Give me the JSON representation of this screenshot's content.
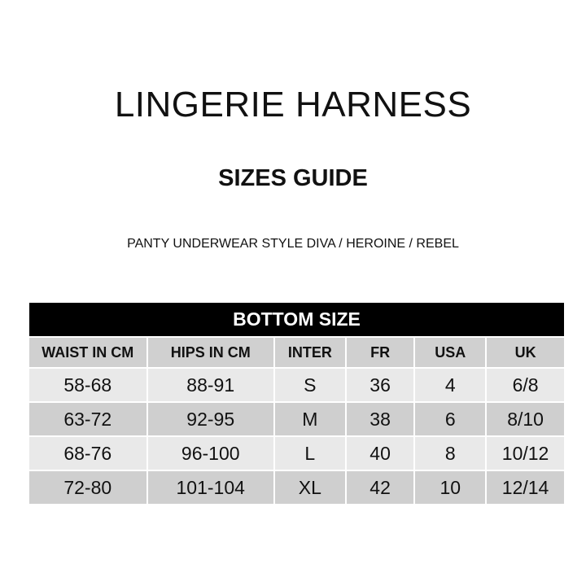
{
  "title": "LINGERIE HARNESS",
  "subtitle": "SIZES GUIDE",
  "description": "PANTY UNDERWEAR STYLE DIVA / HEROINE / REBEL",
  "table": {
    "banner": "BOTTOM SIZE",
    "columns": [
      "WAIST IN CM",
      "HIPS IN CM",
      "INTER",
      "FR",
      "USA",
      "UK"
    ],
    "rows": [
      [
        "58-68",
        "88-91",
        "S",
        "36",
        "4",
        "6/8"
      ],
      [
        "63-72",
        "92-95",
        "M",
        "38",
        "6",
        "8/10"
      ],
      [
        "68-76",
        "96-100",
        "L",
        "40",
        "8",
        "10/12"
      ],
      [
        "72-80",
        "101-104",
        "XL",
        "42",
        "10",
        "12/14"
      ]
    ]
  }
}
